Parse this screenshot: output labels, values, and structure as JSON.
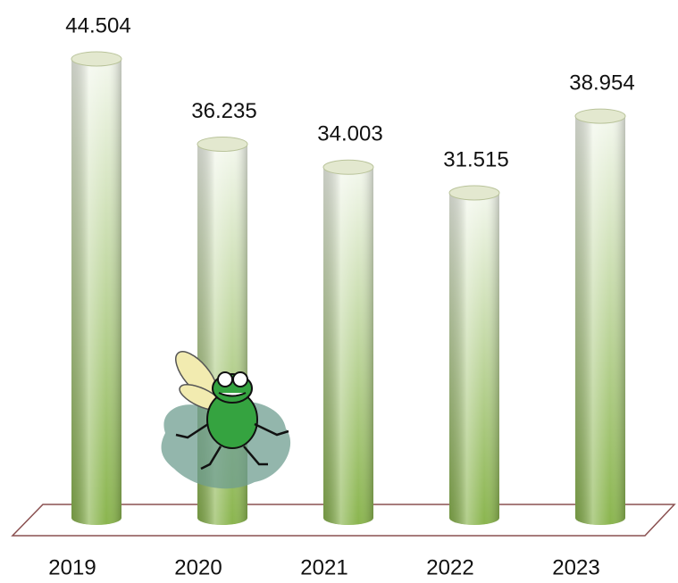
{
  "chart_data": {
    "type": "cylinder-bar",
    "categories": [
      "2019",
      "2020",
      "2021",
      "2022",
      "2023"
    ],
    "values": [
      44.504,
      36.235,
      34.003,
      31.515,
      38.954
    ],
    "color": "#8ab54e"
  }
}
